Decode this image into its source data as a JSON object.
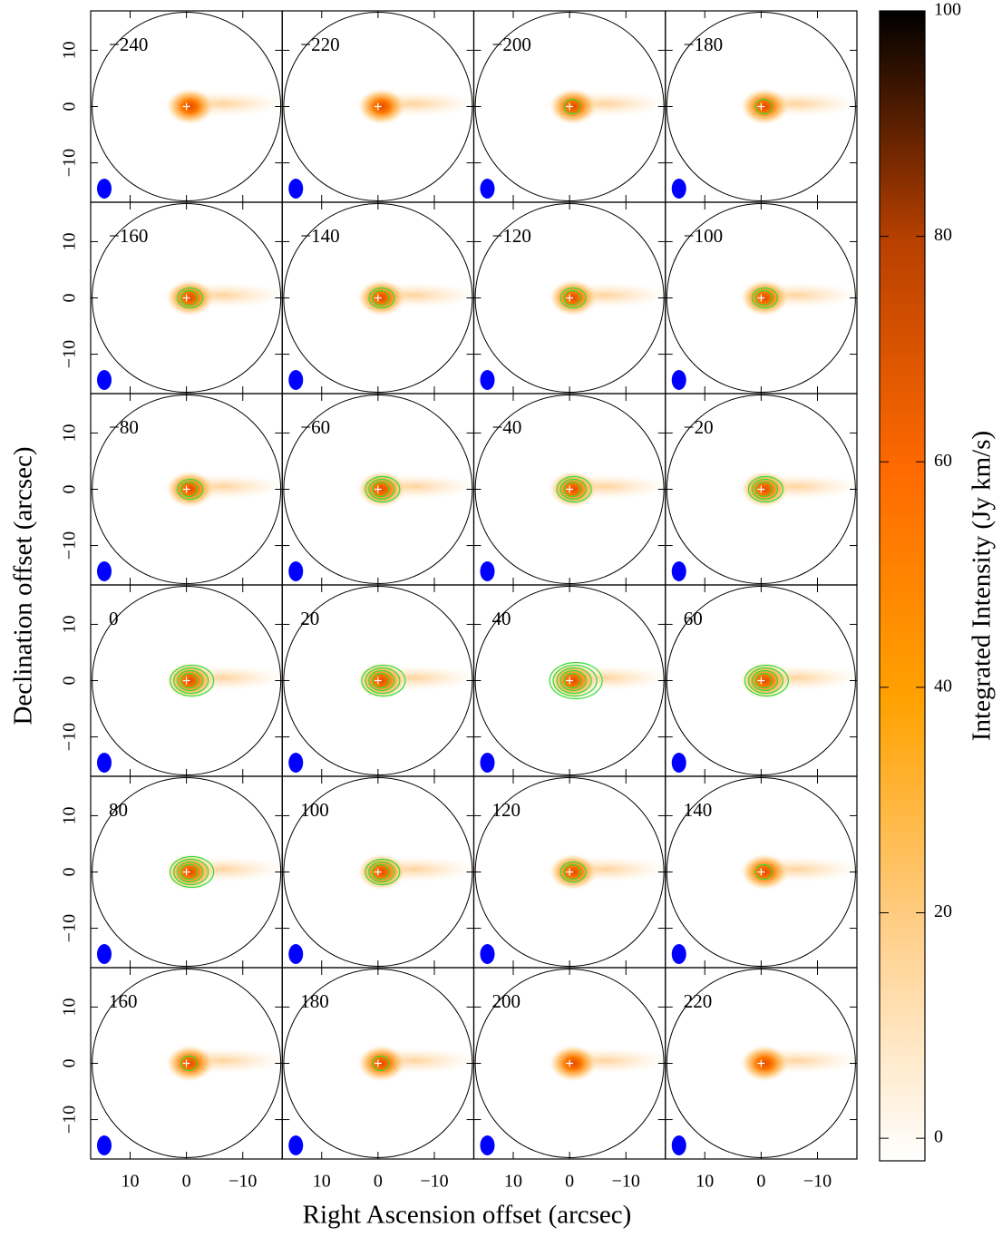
{
  "chart_data": {
    "type": "channel-map",
    "x_label": "Right Ascension offset (arcsec)",
    "y_label": "Declination offset (arcsec)",
    "panels": [
      "−240",
      "−220",
      "−200",
      "−180",
      "−160",
      "−140",
      "−120",
      "−100",
      "−80",
      "−60",
      "−40",
      "−20",
      "0",
      "20",
      "40",
      "60",
      "80",
      "100",
      "120",
      "140",
      "160",
      "180",
      "200",
      "220"
    ],
    "xlim": [
      17,
      -17
    ],
    "ylim": [
      -17,
      17
    ],
    "xticks": [
      10,
      0,
      {
        "value": -10,
        "label": "−10"
      }
    ],
    "yticks": [
      {
        "value": -10,
        "label": "−10"
      },
      0,
      10
    ],
    "colorbar": {
      "label": "Integrated Intensity (Jy km/s)",
      "lim": [
        -2,
        100
      ],
      "ticks": [
        0,
        20,
        40,
        60,
        80,
        100
      ],
      "colors": [
        "#ffffff",
        "#ffcf8a",
        "#ffa200",
        "#ff6a00",
        "#b84000",
        "#000000"
      ]
    },
    "contour_color": "#33dd33",
    "beam_color": "#0000ff"
  }
}
